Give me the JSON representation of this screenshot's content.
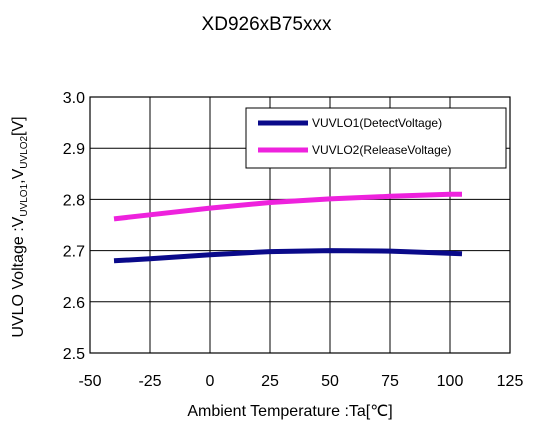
{
  "chart_data": {
    "type": "line",
    "title": "XD926xB75xxx",
    "xlabel": "Ambient Temperature :Ta[℃]",
    "ylabel": {
      "prefix": "UVLO Voltage :V",
      "sub1": "UVLO1",
      "mid": ",V",
      "sub2": "UVLO2",
      "suffix": "[V]"
    },
    "xlim": [
      -50,
      125
    ],
    "ylim": [
      2.5,
      3.0
    ],
    "xticks": [
      "-50",
      "-25",
      "0",
      "25",
      "50",
      "75",
      "100",
      "125"
    ],
    "yticks": [
      "2.5",
      "2.6",
      "2.7",
      "2.8",
      "2.9",
      "3.0"
    ],
    "grid": true,
    "legend_position": "top-right",
    "series": [
      {
        "name": "VUVLO1(DetectVoltage)",
        "color": "#0a0a8a",
        "x": [
          -40,
          -25,
          0,
          25,
          50,
          75,
          105
        ],
        "y": [
          2.68,
          2.684,
          2.692,
          2.698,
          2.7,
          2.699,
          2.694
        ]
      },
      {
        "name": "VUVLO2(ReleaseVoltage)",
        "color": "#ee22dd",
        "x": [
          -40,
          -25,
          0,
          25,
          50,
          75,
          100,
          105
        ],
        "y": [
          2.762,
          2.77,
          2.783,
          2.794,
          2.801,
          2.806,
          2.81,
          2.81
        ]
      }
    ]
  }
}
